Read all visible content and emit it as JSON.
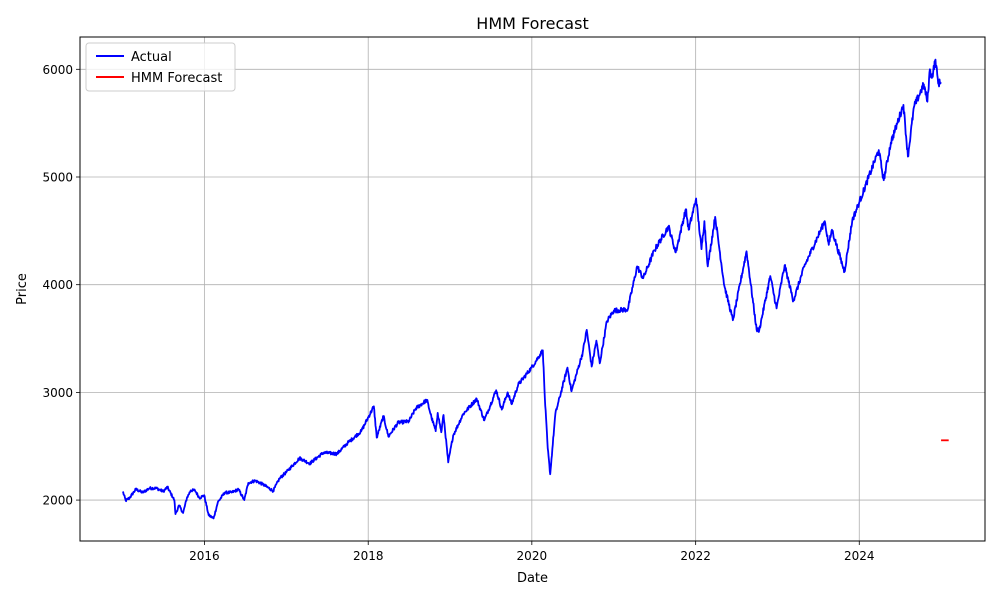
{
  "chart_data": {
    "type": "line",
    "title": "HMM Forecast",
    "xlabel": "Date",
    "ylabel": "Price",
    "xlim": [
      "2014-06-25",
      "2025-07-15"
    ],
    "ylim": [
      1620,
      6300
    ],
    "x_ticks": [
      "2016",
      "2018",
      "2020",
      "2022",
      "2024"
    ],
    "y_ticks": [
      2000,
      3000,
      4000,
      5000,
      6000
    ],
    "grid": true,
    "legend_position": "top-left",
    "series": [
      {
        "name": "Actual",
        "color": "#0000ff",
        "points": [
          [
            "2015-01-02",
            2080
          ],
          [
            "2015-01-15",
            1995
          ],
          [
            "2015-02-01",
            2020
          ],
          [
            "2015-03-01",
            2100
          ],
          [
            "2015-04-01",
            2070
          ],
          [
            "2015-05-01",
            2110
          ],
          [
            "2015-06-01",
            2110
          ],
          [
            "2015-07-01",
            2080
          ],
          [
            "2015-07-20",
            2120
          ],
          [
            "2015-08-20",
            2000
          ],
          [
            "2015-08-25",
            1870
          ],
          [
            "2015-09-10",
            1950
          ],
          [
            "2015-09-28",
            1880
          ],
          [
            "2015-10-15",
            2020
          ],
          [
            "2015-11-01",
            2090
          ],
          [
            "2015-11-20",
            2090
          ],
          [
            "2015-12-10",
            2020
          ],
          [
            "2015-12-31",
            2045
          ],
          [
            "2016-01-20",
            1860
          ],
          [
            "2016-02-11",
            1830
          ],
          [
            "2016-03-01",
            1980
          ],
          [
            "2016-04-01",
            2070
          ],
          [
            "2016-05-01",
            2070
          ],
          [
            "2016-06-01",
            2100
          ],
          [
            "2016-06-27",
            2000
          ],
          [
            "2016-07-15",
            2160
          ],
          [
            "2016-08-15",
            2180
          ],
          [
            "2016-09-15",
            2150
          ],
          [
            "2016-11-03",
            2085
          ],
          [
            "2016-12-01",
            2200
          ],
          [
            "2017-01-01",
            2260
          ],
          [
            "2017-03-01",
            2390
          ],
          [
            "2017-04-15",
            2340
          ],
          [
            "2017-06-15",
            2440
          ],
          [
            "2017-08-15",
            2430
          ],
          [
            "2017-10-01",
            2530
          ],
          [
            "2017-12-01",
            2640
          ],
          [
            "2018-01-26",
            2870
          ],
          [
            "2018-02-08",
            2580
          ],
          [
            "2018-03-10",
            2780
          ],
          [
            "2018-04-01",
            2590
          ],
          [
            "2018-05-15",
            2720
          ],
          [
            "2018-07-01",
            2730
          ],
          [
            "2018-08-01",
            2850
          ],
          [
            "2018-09-20",
            2930
          ],
          [
            "2018-10-10",
            2770
          ],
          [
            "2018-10-29",
            2640
          ],
          [
            "2018-11-07",
            2810
          ],
          [
            "2018-11-23",
            2630
          ],
          [
            "2018-12-03",
            2790
          ],
          [
            "2018-12-24",
            2350
          ],
          [
            "2019-01-15",
            2600
          ],
          [
            "2019-03-01",
            2800
          ],
          [
            "2019-04-30",
            2940
          ],
          [
            "2019-06-03",
            2740
          ],
          [
            "2019-07-26",
            3020
          ],
          [
            "2019-08-20",
            2840
          ],
          [
            "2019-09-15",
            3000
          ],
          [
            "2019-10-03",
            2890
          ],
          [
            "2019-11-01",
            3070
          ],
          [
            "2019-12-31",
            3230
          ],
          [
            "2020-02-19",
            3390
          ],
          [
            "2020-02-28",
            2950
          ],
          [
            "2020-03-12",
            2480
          ],
          [
            "2020-03-23",
            2240
          ],
          [
            "2020-04-15",
            2800
          ],
          [
            "2020-06-08",
            3230
          ],
          [
            "2020-06-26",
            3010
          ],
          [
            "2020-08-15",
            3370
          ],
          [
            "2020-09-02",
            3580
          ],
          [
            "2020-09-24",
            3240
          ],
          [
            "2020-10-15",
            3480
          ],
          [
            "2020-10-30",
            3270
          ],
          [
            "2020-12-01",
            3660
          ],
          [
            "2021-01-01",
            3760
          ],
          [
            "2021-03-04",
            3770
          ],
          [
            "2021-04-15",
            4170
          ],
          [
            "2021-05-12",
            4060
          ],
          [
            "2021-07-01",
            4320
          ],
          [
            "2021-09-02",
            4540
          ],
          [
            "2021-10-04",
            4300
          ],
          [
            "2021-11-18",
            4700
          ],
          [
            "2021-12-01",
            4510
          ],
          [
            "2022-01-03",
            4800
          ],
          [
            "2022-01-27",
            4330
          ],
          [
            "2022-02-09",
            4590
          ],
          [
            "2022-02-24",
            4170
          ],
          [
            "2022-03-29",
            4630
          ],
          [
            "2022-05-09",
            3990
          ],
          [
            "2022-06-16",
            3670
          ],
          [
            "2022-08-16",
            4310
          ],
          [
            "2022-09-30",
            3580
          ],
          [
            "2022-10-12",
            3580
          ],
          [
            "2022-11-30",
            4080
          ],
          [
            "2022-12-28",
            3780
          ],
          [
            "2023-02-02",
            4180
          ],
          [
            "2023-03-13",
            3850
          ],
          [
            "2023-05-01",
            4170
          ],
          [
            "2023-07-31",
            4590
          ],
          [
            "2023-08-18",
            4370
          ],
          [
            "2023-09-01",
            4510
          ],
          [
            "2023-10-27",
            4120
          ],
          [
            "2023-12-01",
            4600
          ],
          [
            "2024-01-02",
            4770
          ],
          [
            "2024-03-28",
            5250
          ],
          [
            "2024-04-19",
            4970
          ],
          [
            "2024-05-21",
            5320
          ],
          [
            "2024-07-16",
            5670
          ],
          [
            "2024-08-05",
            5190
          ],
          [
            "2024-09-01",
            5650
          ],
          [
            "2024-10-15",
            5860
          ],
          [
            "2024-10-31",
            5700
          ],
          [
            "2024-11-11",
            6000
          ],
          [
            "2024-11-20",
            5920
          ],
          [
            "2024-12-06",
            6090
          ],
          [
            "2024-12-18",
            5870
          ],
          [
            "2024-12-30",
            5880
          ]
        ]
      },
      {
        "name": "HMM Forecast",
        "color": "#ff0000",
        "points": [
          [
            "2024-12-31",
            2555
          ],
          [
            "2025-02-03",
            2555
          ]
        ]
      }
    ]
  }
}
